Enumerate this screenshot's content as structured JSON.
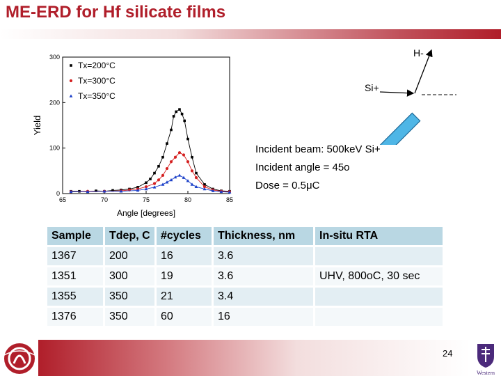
{
  "title": "ME-ERD for Hf silicate films",
  "beam": {
    "line1": "Incident beam: 500keV Si+",
    "line2": "Incident angle = 45o",
    "line3": "Dose = 0.5μC"
  },
  "diagram": {
    "h_label": "H-",
    "si_label": "Si+"
  },
  "chart_data": {
    "type": "scatter",
    "xlabel": "Angle [degrees]",
    "ylabel": "Yield",
    "xlim": [
      65,
      85
    ],
    "ylim": [
      0,
      300
    ],
    "xticks": [
      "65",
      "70",
      "75",
      "80",
      "85"
    ],
    "yticks": [
      "0",
      "100",
      "200",
      "300"
    ],
    "legend_position": "top-left",
    "grid": false,
    "series": [
      {
        "name": "Tx=200°C",
        "color": "#000000",
        "marker": "square",
        "x": [
          66,
          67,
          68,
          69,
          70,
          71,
          72,
          73,
          74,
          75,
          75.5,
          76,
          76.5,
          77,
          77.5,
          78,
          78.3,
          78.6,
          79,
          79.3,
          79.6,
          80,
          80.5,
          81,
          82,
          83,
          84,
          85
        ],
        "y": [
          5,
          5,
          4,
          6,
          5,
          7,
          8,
          10,
          14,
          24,
          32,
          45,
          60,
          80,
          110,
          140,
          170,
          180,
          185,
          175,
          160,
          120,
          80,
          45,
          20,
          10,
          6,
          5
        ]
      },
      {
        "name": "Tx=300°C",
        "color": "#d42020",
        "marker": "circle",
        "x": [
          66,
          68,
          70,
          72,
          73,
          74,
          75,
          76,
          76.5,
          77,
          77.5,
          78,
          78.5,
          79,
          79.5,
          80,
          80.5,
          81,
          82,
          83,
          84,
          85
        ],
        "y": [
          4,
          5,
          5,
          6,
          8,
          10,
          15,
          22,
          30,
          40,
          55,
          70,
          80,
          90,
          85,
          70,
          50,
          35,
          15,
          8,
          5,
          4
        ]
      },
      {
        "name": "Tx=350°C",
        "color": "#1a3fc8",
        "marker": "triangle",
        "x": [
          66,
          68,
          70,
          72,
          74,
          75,
          76,
          77,
          77.5,
          78,
          78.5,
          79,
          79.5,
          80,
          80.5,
          81,
          82,
          83,
          84,
          85
        ],
        "y": [
          4,
          4,
          5,
          5,
          7,
          10,
          14,
          20,
          25,
          30,
          36,
          40,
          35,
          28,
          20,
          15,
          10,
          6,
          4,
          3
        ]
      }
    ]
  },
  "table": {
    "headers": [
      "Sample",
      "Tdep, C",
      "#cycles",
      "Thickness, nm",
      "In-situ RTA"
    ],
    "rows": [
      [
        "1367",
        "200",
        "16",
        "3.6",
        ""
      ],
      [
        "1351",
        "300",
        "19",
        "3.6",
        "UHV, 800oC, 30 sec"
      ],
      [
        "1355",
        "350",
        "21",
        "3.4",
        ""
      ],
      [
        "1376",
        "350",
        "60",
        "16",
        ""
      ]
    ]
  },
  "page_number": "24",
  "logos": {
    "left": "ALD logo",
    "right": "Western"
  }
}
